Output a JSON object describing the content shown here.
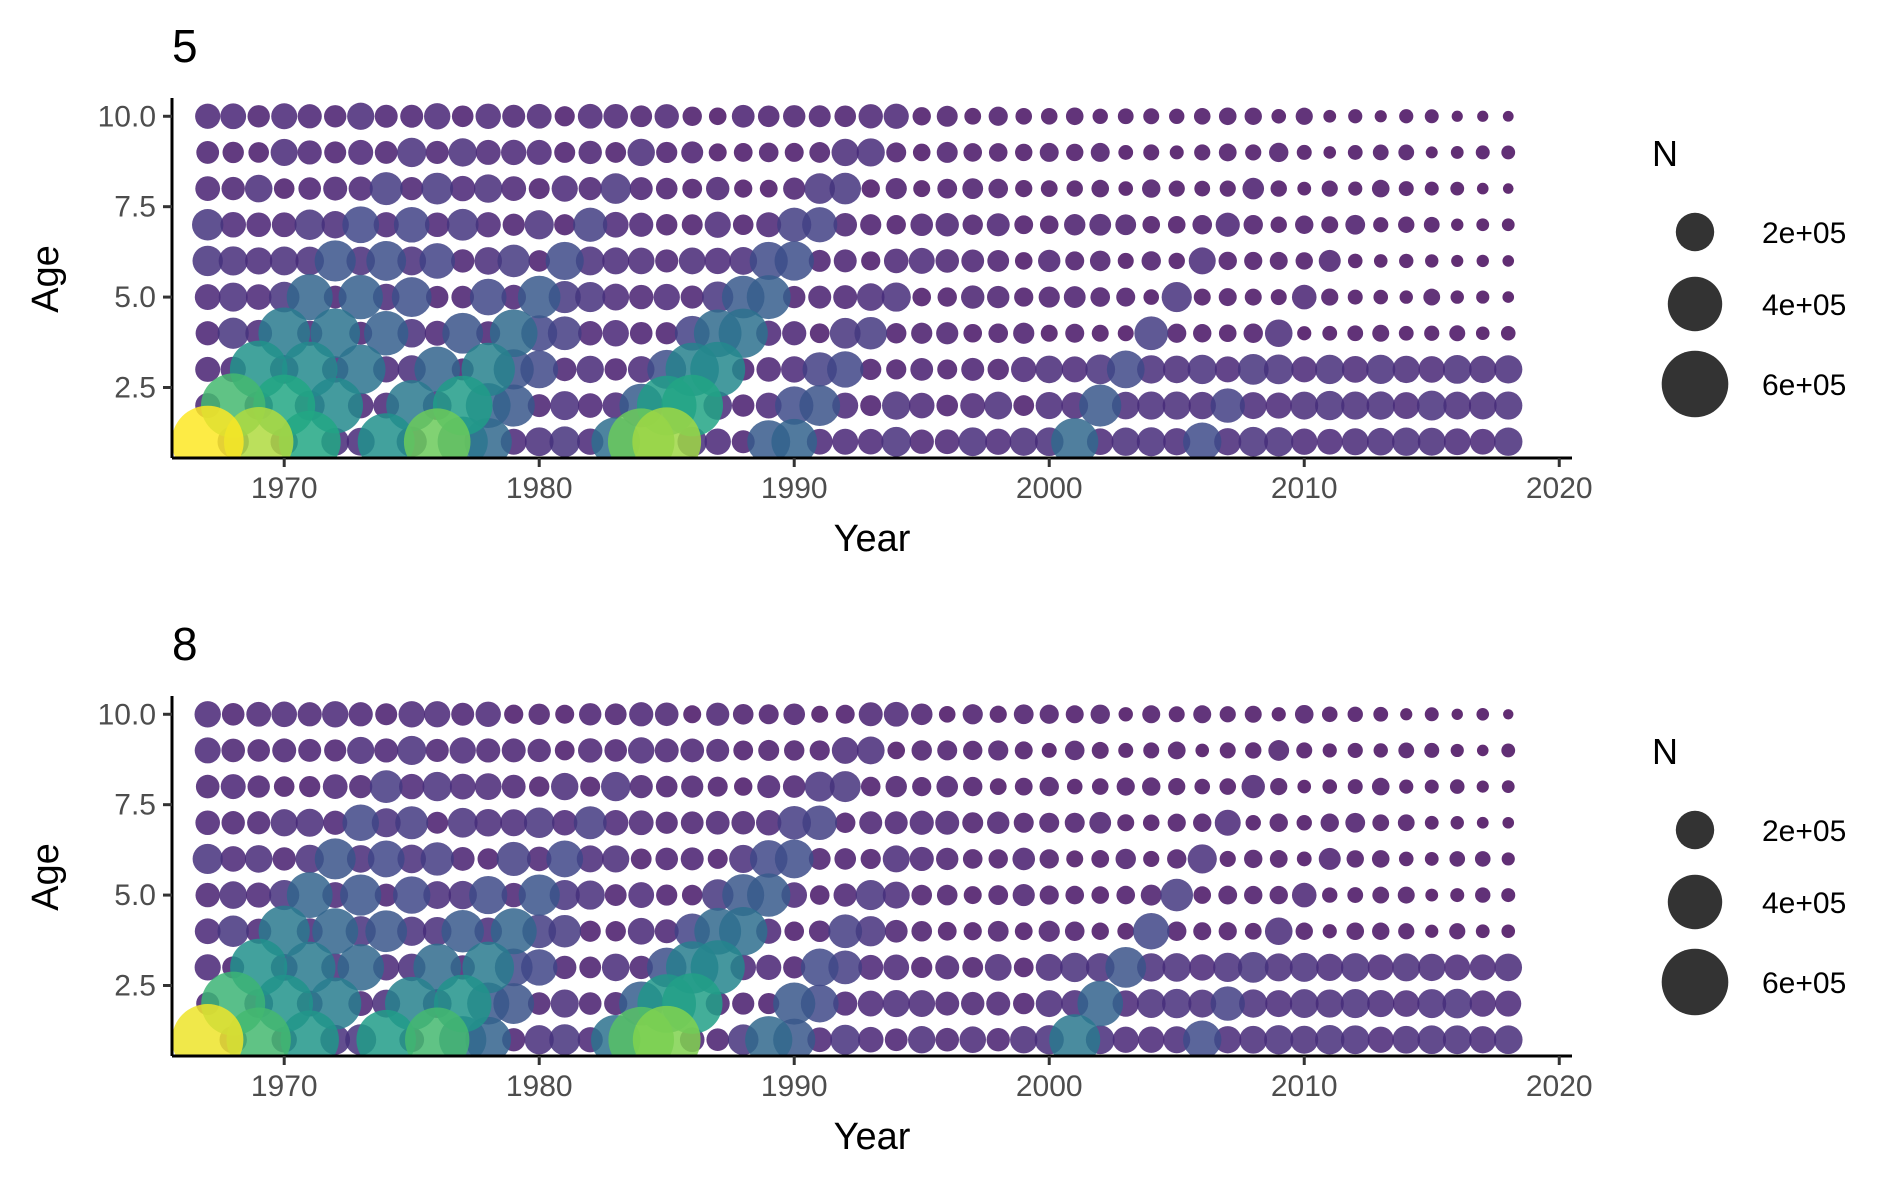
{
  "chart_data": [
    {
      "type": "scatter",
      "title": "5",
      "xlabel": "Year",
      "ylabel": "Age",
      "xlim": [
        1965.6,
        2020.5
      ],
      "ylim": [
        0.55,
        10.45
      ],
      "x_ticks": [
        "1970",
        "1980",
        "1990",
        "2000",
        "2010",
        "2020"
      ],
      "y_ticks": [
        "2.5",
        "5.0",
        "7.5",
        "10.0"
      ],
      "grid": false,
      "legend": {
        "title": "N",
        "placement": "right",
        "entries": [
          {
            "label": "2e+05",
            "value": 200000
          },
          {
            "label": "4e+05",
            "value": 400000
          },
          {
            "label": "6e+05",
            "value": 600000
          }
        ]
      },
      "size_scale_max": 700000,
      "color_scale": "viridis",
      "years": [
        1967,
        2018
      ],
      "ages": [
        1,
        10
      ],
      "cohorts": [
        {
          "year_class": 1966,
          "n_age1": 700000
        },
        {
          "year_class": 1968,
          "n_age1": 650000
        },
        {
          "year_class": 1970,
          "n_age1": 520000
        },
        {
          "year_class": 1973,
          "n_age1": 440000
        },
        {
          "year_class": 1975,
          "n_age1": 600000
        },
        {
          "year_class": 1976,
          "n_age1": 340000
        },
        {
          "year_class": 1977,
          "n_age1": 300000
        },
        {
          "year_class": 1982,
          "n_age1": 320000
        },
        {
          "year_class": 1983,
          "n_age1": 600000
        },
        {
          "year_class": 1984,
          "n_age1": 640000
        },
        {
          "year_class": 1988,
          "n_age1": 250000
        },
        {
          "year_class": 1989,
          "n_age1": 280000
        },
        {
          "year_class": 2000,
          "n_age1": 300000
        },
        {
          "year_class": 2005,
          "n_age1": 200000
        }
      ]
    },
    {
      "type": "scatter",
      "title": "8",
      "xlabel": "Year",
      "ylabel": "Age",
      "xlim": [
        1965.6,
        2020.5
      ],
      "ylim": [
        0.55,
        10.45
      ],
      "x_ticks": [
        "1970",
        "1980",
        "1990",
        "2000",
        "2010",
        "2020"
      ],
      "y_ticks": [
        "2.5",
        "5.0",
        "7.5",
        "10.0"
      ],
      "grid": false,
      "legend": {
        "title": "N",
        "placement": "right",
        "entries": [
          {
            "label": "2e+05",
            "value": 200000
          },
          {
            "label": "4e+05",
            "value": 400000
          },
          {
            "label": "6e+05",
            "value": 600000
          }
        ]
      },
      "size_scale_max": 700000,
      "color_scale": "viridis",
      "years": [
        1967,
        2018
      ],
      "ages": [
        1,
        10
      ],
      "cohorts": [
        {
          "year_class": 1966,
          "n_age1": 690000
        },
        {
          "year_class": 1968,
          "n_age1": 560000
        },
        {
          "year_class": 1970,
          "n_age1": 460000
        },
        {
          "year_class": 1973,
          "n_age1": 480000
        },
        {
          "year_class": 1975,
          "n_age1": 560000
        },
        {
          "year_class": 1976,
          "n_age1": 300000
        },
        {
          "year_class": 1977,
          "n_age1": 280000
        },
        {
          "year_class": 1982,
          "n_age1": 330000
        },
        {
          "year_class": 1983,
          "n_age1": 580000
        },
        {
          "year_class": 1984,
          "n_age1": 620000
        },
        {
          "year_class": 1988,
          "n_age1": 300000
        },
        {
          "year_class": 1989,
          "n_age1": 240000
        },
        {
          "year_class": 2000,
          "n_age1": 350000
        },
        {
          "year_class": 2005,
          "n_age1": 200000
        }
      ]
    }
  ]
}
